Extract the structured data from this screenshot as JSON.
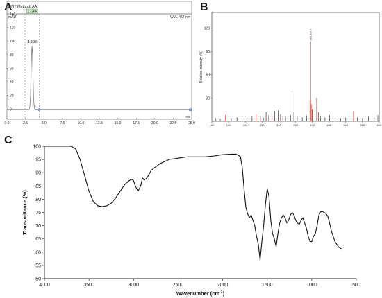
{
  "panels": {
    "a": "A",
    "b": "B",
    "c": "C"
  },
  "chart_data": [
    {
      "type": "line",
      "panel": "A",
      "header": "QNT Method: AA",
      "method_tag": "1 - AA",
      "ylabel": "mAU",
      "xunit": "min",
      "channel_label": "WVL:457 nm",
      "xlim": [
        0,
        25
      ],
      "ylim": [
        -15,
        140
      ],
      "xticks": [
        0,
        2.5,
        5,
        7.5,
        10,
        12.5,
        15,
        17.5,
        20,
        22.5,
        25
      ],
      "xtick_labels": [
        "0.0",
        "2.5",
        "5.0",
        "7.5",
        "10.0",
        "12.5",
        "15.0",
        "17.5",
        "20.0",
        "22.5",
        "25.0"
      ],
      "yticks": [
        0,
        20,
        40,
        60,
        80,
        100,
        120,
        140
      ],
      "integration_window": [
        2.45,
        4.35
      ],
      "peak": {
        "x": 3.393,
        "y": 92,
        "label": "3.393"
      },
      "baseline": -1,
      "color": "#8a8a8a"
    },
    {
      "type": "bar",
      "panel": "B",
      "ylabel": "Relative intensity (%)",
      "xlim": [
        100,
        600
      ],
      "ylim": [
        0,
        140
      ],
      "xticks": [
        100,
        150,
        200,
        250,
        300,
        350,
        400,
        450,
        500,
        550,
        600
      ],
      "yticks": [
        30,
        60,
        90,
        120
      ],
      "base_peak_label": "395.3377",
      "peaks": [
        {
          "x": 112,
          "y": 4,
          "c": "k"
        },
        {
          "x": 125,
          "y": 3,
          "c": "k"
        },
        {
          "x": 140,
          "y": 8,
          "c": "r"
        },
        {
          "x": 158,
          "y": 4,
          "c": "k"
        },
        {
          "x": 175,
          "y": 5,
          "c": "k"
        },
        {
          "x": 190,
          "y": 4,
          "c": "k"
        },
        {
          "x": 205,
          "y": 5,
          "c": "k"
        },
        {
          "x": 220,
          "y": 6,
          "c": "k"
        },
        {
          "x": 232,
          "y": 9,
          "c": "r"
        },
        {
          "x": 245,
          "y": 7,
          "c": "k"
        },
        {
          "x": 255,
          "y": 5,
          "c": "r"
        },
        {
          "x": 262,
          "y": 12,
          "c": "k"
        },
        {
          "x": 270,
          "y": 8,
          "c": "k"
        },
        {
          "x": 280,
          "y": 6,
          "c": "r"
        },
        {
          "x": 288,
          "y": 13,
          "c": "k"
        },
        {
          "x": 292,
          "y": 15,
          "c": "k"
        },
        {
          "x": 298,
          "y": 14,
          "c": "k"
        },
        {
          "x": 305,
          "y": 9,
          "c": "r"
        },
        {
          "x": 312,
          "y": 7,
          "c": "k"
        },
        {
          "x": 320,
          "y": 6,
          "c": "k"
        },
        {
          "x": 335,
          "y": 8,
          "c": "k"
        },
        {
          "x": 340,
          "y": 39,
          "c": "k"
        },
        {
          "x": 345,
          "y": 12,
          "c": "k"
        },
        {
          "x": 355,
          "y": 6,
          "c": "k"
        },
        {
          "x": 370,
          "y": 5,
          "c": "k"
        },
        {
          "x": 383,
          "y": 7,
          "c": "k"
        },
        {
          "x": 393,
          "y": 27,
          "c": "r"
        },
        {
          "x": 395,
          "y": 103,
          "c": "r"
        },
        {
          "x": 397,
          "y": 22,
          "c": "r"
        },
        {
          "x": 400,
          "y": 15,
          "c": "k"
        },
        {
          "x": 408,
          "y": 10,
          "c": "k"
        },
        {
          "x": 413,
          "y": 30,
          "c": "r"
        },
        {
          "x": 418,
          "y": 12,
          "c": "k"
        },
        {
          "x": 425,
          "y": 6,
          "c": "k"
        },
        {
          "x": 438,
          "y": 5,
          "c": "k"
        },
        {
          "x": 452,
          "y": 8,
          "c": "k"
        },
        {
          "x": 468,
          "y": 5,
          "c": "k"
        },
        {
          "x": 485,
          "y": 4,
          "c": "k"
        },
        {
          "x": 500,
          "y": 5,
          "c": "k"
        },
        {
          "x": 523,
          "y": 13,
          "c": "r"
        },
        {
          "x": 535,
          "y": 5,
          "c": "k"
        },
        {
          "x": 550,
          "y": 4,
          "c": "k"
        },
        {
          "x": 568,
          "y": 6,
          "c": "k"
        },
        {
          "x": 585,
          "y": 5,
          "c": "k"
        },
        {
          "x": 596,
          "y": 8,
          "c": "k"
        }
      ],
      "colors": {
        "k": "#333333",
        "r": "#d23a2a"
      }
    },
    {
      "type": "line",
      "panel": "C",
      "xlabel": "Wavenumber (cm",
      "xlabel_sup": "-1",
      "xlabel_end": ")",
      "ylabel": "Transmittance (%)",
      "xlim": [
        4000,
        500
      ],
      "ylim": [
        50,
        100
      ],
      "xticks": [
        4000,
        3500,
        3000,
        2500,
        2000,
        1500,
        1000,
        500
      ],
      "yticks": [
        50,
        55,
        60,
        65,
        70,
        75,
        80,
        85,
        90,
        95,
        100
      ],
      "x": [
        4000,
        3900,
        3800,
        3700,
        3650,
        3600,
        3550,
        3500,
        3450,
        3400,
        3350,
        3300,
        3250,
        3200,
        3150,
        3100,
        3050,
        3020,
        3000,
        2980,
        2950,
        2920,
        2900,
        2880,
        2850,
        2800,
        2700,
        2600,
        2500,
        2400,
        2300,
        2200,
        2100,
        2000,
        1900,
        1850,
        1820,
        1800,
        1780,
        1760,
        1740,
        1720,
        1700,
        1680,
        1660,
        1640,
        1620,
        1600,
        1580,
        1560,
        1540,
        1520,
        1500,
        1480,
        1460,
        1440,
        1420,
        1400,
        1380,
        1360,
        1340,
        1320,
        1300,
        1280,
        1260,
        1240,
        1220,
        1200,
        1180,
        1160,
        1140,
        1120,
        1100,
        1080,
        1060,
        1040,
        1020,
        1000,
        980,
        960,
        940,
        920,
        900,
        880,
        860,
        840,
        820,
        800,
        780,
        760,
        740,
        720,
        700,
        680,
        660
      ],
      "y": [
        100,
        100,
        100,
        100,
        99,
        95,
        89,
        83,
        79,
        77.5,
        77.2,
        77.5,
        78.5,
        80.5,
        83,
        85.5,
        87,
        87.5,
        87,
        85,
        83,
        85,
        88,
        87.2,
        88,
        91,
        93.5,
        95,
        95.5,
        96,
        96,
        96,
        96.3,
        96.8,
        97,
        97,
        96.5,
        96,
        92,
        84,
        77,
        74.5,
        73,
        74,
        72,
        70,
        66,
        63,
        57,
        64,
        70,
        78,
        84,
        81,
        72,
        67,
        65,
        62,
        67,
        71,
        73,
        74,
        73,
        71,
        72,
        74,
        75,
        74,
        72,
        71,
        70.5,
        72,
        73,
        71,
        69,
        66,
        64,
        64,
        66,
        67,
        70,
        74,
        75.2,
        75.3,
        75,
        74.5,
        73.5,
        71,
        68,
        66,
        64,
        63,
        62,
        61.5,
        61
      ],
      "color": "#111111"
    }
  ]
}
